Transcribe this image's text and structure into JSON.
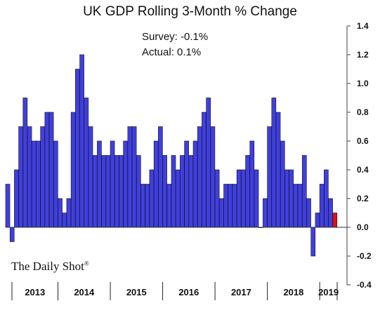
{
  "chart_data": {
    "type": "bar",
    "title": "UK GDP Rolling 3-Month % Change",
    "annotations": {
      "survey": "Survey: -0.1%",
      "actual": "Actual:  0.1%"
    },
    "watermark": "The Daily Shot",
    "watermark_mark": "®",
    "ylim": [
      -0.4,
      1.4
    ],
    "yticks": [
      -0.4,
      -0.2,
      0.0,
      0.2,
      0.4,
      0.6,
      0.8,
      1.0,
      1.2,
      1.4
    ],
    "ytick_labels": [
      "-0.4",
      "-0.2",
      "0.0",
      "0.2",
      "0.4",
      "0.6",
      "0.8",
      "1.0",
      "1.2",
      "1.4"
    ],
    "grid": false,
    "years": [
      "2013",
      "2014",
      "2015",
      "2016",
      "2017",
      "2018",
      "2019"
    ],
    "bar_color": "#3f3fe0",
    "highlight_color": "#e01010",
    "values": [
      0.3,
      -0.1,
      0.4,
      0.7,
      0.9,
      0.7,
      0.6,
      0.6,
      0.7,
      0.8,
      0.8,
      0.6,
      0.2,
      0.1,
      0.2,
      0.8,
      1.1,
      1.2,
      0.9,
      0.7,
      0.5,
      0.6,
      0.5,
      0.5,
      0.6,
      0.5,
      0.5,
      0.6,
      0.7,
      0.7,
      0.5,
      0.3,
      0.3,
      0.4,
      0.6,
      0.7,
      0.5,
      0.3,
      0.5,
      0.4,
      0.5,
      0.6,
      0.5,
      0.6,
      0.7,
      0.8,
      0.9,
      0.7,
      0.4,
      0.2,
      0.3,
      0.3,
      0.3,
      0.4,
      0.4,
      0.5,
      0.6,
      0.4,
      0.0,
      0.2,
      0.7,
      0.9,
      0.8,
      0.6,
      0.4,
      0.4,
      0.3,
      0.3,
      0.5,
      0.2,
      -0.2,
      0.1,
      0.3,
      0.4,
      0.2,
      0.1
    ],
    "highlight_last": true
  }
}
